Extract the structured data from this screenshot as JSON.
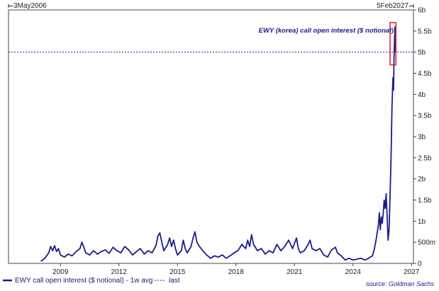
{
  "chart_data": {
    "type": "line",
    "start_date_label": "3May2006",
    "end_date_label": "5Feb2027",
    "x_range": [
      2006.34,
      2027.1
    ],
    "y_range": [
      0,
      6
    ],
    "x_ticks": [
      {
        "label": "2009",
        "value": 2009
      },
      {
        "label": "2012",
        "value": 2012
      },
      {
        "label": "2015",
        "value": 2015
      },
      {
        "label": "2018",
        "value": 2018
      },
      {
        "label": "2021",
        "value": 2021
      },
      {
        "label": "2024",
        "value": 2024
      },
      {
        "label": "2027",
        "value": 2027
      }
    ],
    "y_ticks": [
      {
        "label": "0",
        "value": 0
      },
      {
        "label": "500m",
        "value": 0.5
      },
      {
        "label": "1b",
        "value": 1
      },
      {
        "label": "1.5b",
        "value": 1.5
      },
      {
        "label": "2b",
        "value": 2
      },
      {
        "label": "2.5b",
        "value": 2.5
      },
      {
        "label": "3b",
        "value": 3
      },
      {
        "label": "3.5b",
        "value": 3.5
      },
      {
        "label": "4b",
        "value": 4
      },
      {
        "label": "4.5b",
        "value": 4.5
      },
      {
        "label": "5b",
        "value": 5
      },
      {
        "label": "5.5b",
        "value": 5.5
      },
      {
        "label": "6b",
        "value": 6
      }
    ],
    "annotation": "EWY (korea) call open interest ($ notional)",
    "last_value": 5.0,
    "highlight_range": {
      "x": [
        2025.9,
        2026.2
      ],
      "y": [
        4.7,
        5.7
      ]
    },
    "series": [
      {
        "name": "EWY call open interest ($ notional) - 1w avg",
        "color": "#1c1c8c",
        "points": [
          [
            2008.0,
            0.05
          ],
          [
            2008.2,
            0.12
          ],
          [
            2008.4,
            0.25
          ],
          [
            2008.5,
            0.4
          ],
          [
            2008.6,
            0.3
          ],
          [
            2008.7,
            0.42
          ],
          [
            2008.8,
            0.28
          ],
          [
            2008.9,
            0.35
          ],
          [
            2009.0,
            0.2
          ],
          [
            2009.2,
            0.15
          ],
          [
            2009.4,
            0.22
          ],
          [
            2009.6,
            0.18
          ],
          [
            2009.8,
            0.28
          ],
          [
            2010.0,
            0.35
          ],
          [
            2010.1,
            0.5
          ],
          [
            2010.2,
            0.38
          ],
          [
            2010.3,
            0.25
          ],
          [
            2010.5,
            0.2
          ],
          [
            2010.7,
            0.3
          ],
          [
            2010.9,
            0.22
          ],
          [
            2011.1,
            0.28
          ],
          [
            2011.3,
            0.32
          ],
          [
            2011.5,
            0.24
          ],
          [
            2011.7,
            0.38
          ],
          [
            2011.9,
            0.3
          ],
          [
            2012.1,
            0.25
          ],
          [
            2012.3,
            0.4
          ],
          [
            2012.5,
            0.32
          ],
          [
            2012.7,
            0.2
          ],
          [
            2012.9,
            0.28
          ],
          [
            2013.1,
            0.35
          ],
          [
            2013.3,
            0.22
          ],
          [
            2013.5,
            0.3
          ],
          [
            2013.7,
            0.25
          ],
          [
            2013.9,
            0.42
          ],
          [
            2014.0,
            0.65
          ],
          [
            2014.1,
            0.72
          ],
          [
            2014.2,
            0.5
          ],
          [
            2014.3,
            0.3
          ],
          [
            2014.5,
            0.45
          ],
          [
            2014.6,
            0.6
          ],
          [
            2014.7,
            0.4
          ],
          [
            2014.8,
            0.55
          ],
          [
            2014.9,
            0.35
          ],
          [
            2015.0,
            0.2
          ],
          [
            2015.2,
            0.3
          ],
          [
            2015.3,
            0.55
          ],
          [
            2015.4,
            0.35
          ],
          [
            2015.5,
            0.25
          ],
          [
            2015.7,
            0.4
          ],
          [
            2015.8,
            0.6
          ],
          [
            2015.9,
            0.75
          ],
          [
            2016.0,
            0.5
          ],
          [
            2016.1,
            0.42
          ],
          [
            2016.3,
            0.3
          ],
          [
            2016.5,
            0.2
          ],
          [
            2016.7,
            0.12
          ],
          [
            2016.9,
            0.18
          ],
          [
            2017.1,
            0.15
          ],
          [
            2017.3,
            0.2
          ],
          [
            2017.5,
            0.12
          ],
          [
            2017.7,
            0.18
          ],
          [
            2017.9,
            0.25
          ],
          [
            2018.1,
            0.3
          ],
          [
            2018.3,
            0.45
          ],
          [
            2018.5,
            0.35
          ],
          [
            2018.6,
            0.55
          ],
          [
            2018.7,
            0.4
          ],
          [
            2018.8,
            0.68
          ],
          [
            2018.9,
            0.45
          ],
          [
            2019.1,
            0.3
          ],
          [
            2019.3,
            0.35
          ],
          [
            2019.5,
            0.22
          ],
          [
            2019.7,
            0.3
          ],
          [
            2019.9,
            0.25
          ],
          [
            2020.1,
            0.45
          ],
          [
            2020.3,
            0.3
          ],
          [
            2020.5,
            0.4
          ],
          [
            2020.7,
            0.55
          ],
          [
            2020.9,
            0.35
          ],
          [
            2021.1,
            0.6
          ],
          [
            2021.2,
            0.35
          ],
          [
            2021.3,
            0.25
          ],
          [
            2021.5,
            0.3
          ],
          [
            2021.7,
            0.45
          ],
          [
            2021.8,
            0.55
          ],
          [
            2021.9,
            0.35
          ],
          [
            2022.1,
            0.3
          ],
          [
            2022.3,
            0.35
          ],
          [
            2022.5,
            0.2
          ],
          [
            2022.7,
            0.15
          ],
          [
            2022.9,
            0.32
          ],
          [
            2023.1,
            0.38
          ],
          [
            2023.2,
            0.25
          ],
          [
            2023.4,
            0.18
          ],
          [
            2023.6,
            0.08
          ],
          [
            2023.8,
            0.12
          ],
          [
            2024.0,
            0.08
          ],
          [
            2024.2,
            0.1
          ],
          [
            2024.4,
            0.12
          ],
          [
            2024.6,
            0.08
          ],
          [
            2024.8,
            0.12
          ],
          [
            2025.0,
            0.18
          ],
          [
            2025.1,
            0.35
          ],
          [
            2025.2,
            0.6
          ],
          [
            2025.3,
            0.9
          ],
          [
            2025.35,
            1.2
          ],
          [
            2025.4,
            0.8
          ],
          [
            2025.45,
            1.1
          ],
          [
            2025.5,
            0.95
          ],
          [
            2025.55,
            1.2
          ],
          [
            2025.6,
            1.5
          ],
          [
            2025.65,
            1.3
          ],
          [
            2025.7,
            1.65
          ],
          [
            2025.75,
            1.1
          ],
          [
            2025.8,
            0.55
          ],
          [
            2025.85,
            0.8
          ],
          [
            2025.9,
            1.6
          ],
          [
            2025.95,
            2.5
          ],
          [
            2026.0,
            3.7
          ],
          [
            2026.05,
            4.4
          ],
          [
            2026.08,
            4.1
          ],
          [
            2026.1,
            4.8
          ],
          [
            2026.13,
            5.3
          ],
          [
            2026.15,
            5.6
          ],
          [
            2026.18,
            5.0
          ]
        ]
      }
    ],
    "legend": [
      {
        "label": "EWY call open interest ($ notional) - 1w avg",
        "style": "solid",
        "color": "#1c1c8c"
      },
      {
        "label": "last",
        "style": "dashed",
        "color": "#1c1c8c"
      }
    ],
    "source": "source: Goldman Sachs"
  }
}
